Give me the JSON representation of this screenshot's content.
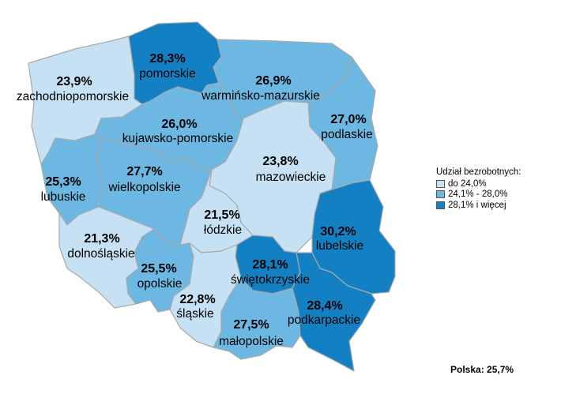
{
  "colors": {
    "low": "#c6e1f3",
    "mid": "#6db8e3",
    "high": "#1280c3"
  },
  "legend": {
    "title": "Udział bezrobotnych:",
    "items": [
      {
        "label": "do 24,0%",
        "class": "low"
      },
      {
        "label": "24,1% - 28,0%",
        "class": "mid"
      },
      {
        "label": "28,1% i więcej",
        "class": "high"
      }
    ]
  },
  "total": "Polska: 25,7%",
  "regions": [
    {
      "id": "zachodniopomorskie",
      "name": "zachodniopomorskie",
      "value": "23,9%",
      "class": "low"
    },
    {
      "id": "pomorskie",
      "name": "pomorskie",
      "value": "28,3%",
      "class": "high"
    },
    {
      "id": "warminsko-mazurskie",
      "name": "warmińsko-mazurskie",
      "value": "26,9%",
      "class": "mid"
    },
    {
      "id": "kujawsko-pomorskie",
      "name": "kujawsko-pomorskie",
      "value": "26,0%",
      "class": "mid"
    },
    {
      "id": "podlaskie",
      "name": "podlaskie",
      "value": "27,0%",
      "class": "mid"
    },
    {
      "id": "lubuskie",
      "name": "lubuskie",
      "value": "25,3%",
      "class": "mid"
    },
    {
      "id": "wielkopolskie",
      "name": "wielkopolskie",
      "value": "27,7%",
      "class": "mid"
    },
    {
      "id": "mazowieckie",
      "name": "mazowieckie",
      "value": "23,8%",
      "class": "low"
    },
    {
      "id": "lodzkie",
      "name": "łódzkie",
      "value": "21,5%",
      "class": "low"
    },
    {
      "id": "lubelskie",
      "name": "lubelskie",
      "value": "30,2%",
      "class": "high"
    },
    {
      "id": "dolnoslaskie",
      "name": "dolnośląskie",
      "value": "21,3%",
      "class": "low"
    },
    {
      "id": "opolskie",
      "name": "opolskie",
      "value": "25,5%",
      "class": "mid"
    },
    {
      "id": "swietokrzyskie",
      "name": "świętokrzyskie",
      "value": "28,1%",
      "class": "high"
    },
    {
      "id": "slaskie",
      "name": "śląskie",
      "value": "22,8%",
      "class": "low"
    },
    {
      "id": "podkarpackie",
      "name": "podkarpackie",
      "value": "28,4%",
      "class": "high"
    },
    {
      "id": "malopolskie",
      "name": "małopolskie",
      "value": "27,5%",
      "class": "mid"
    }
  ]
}
